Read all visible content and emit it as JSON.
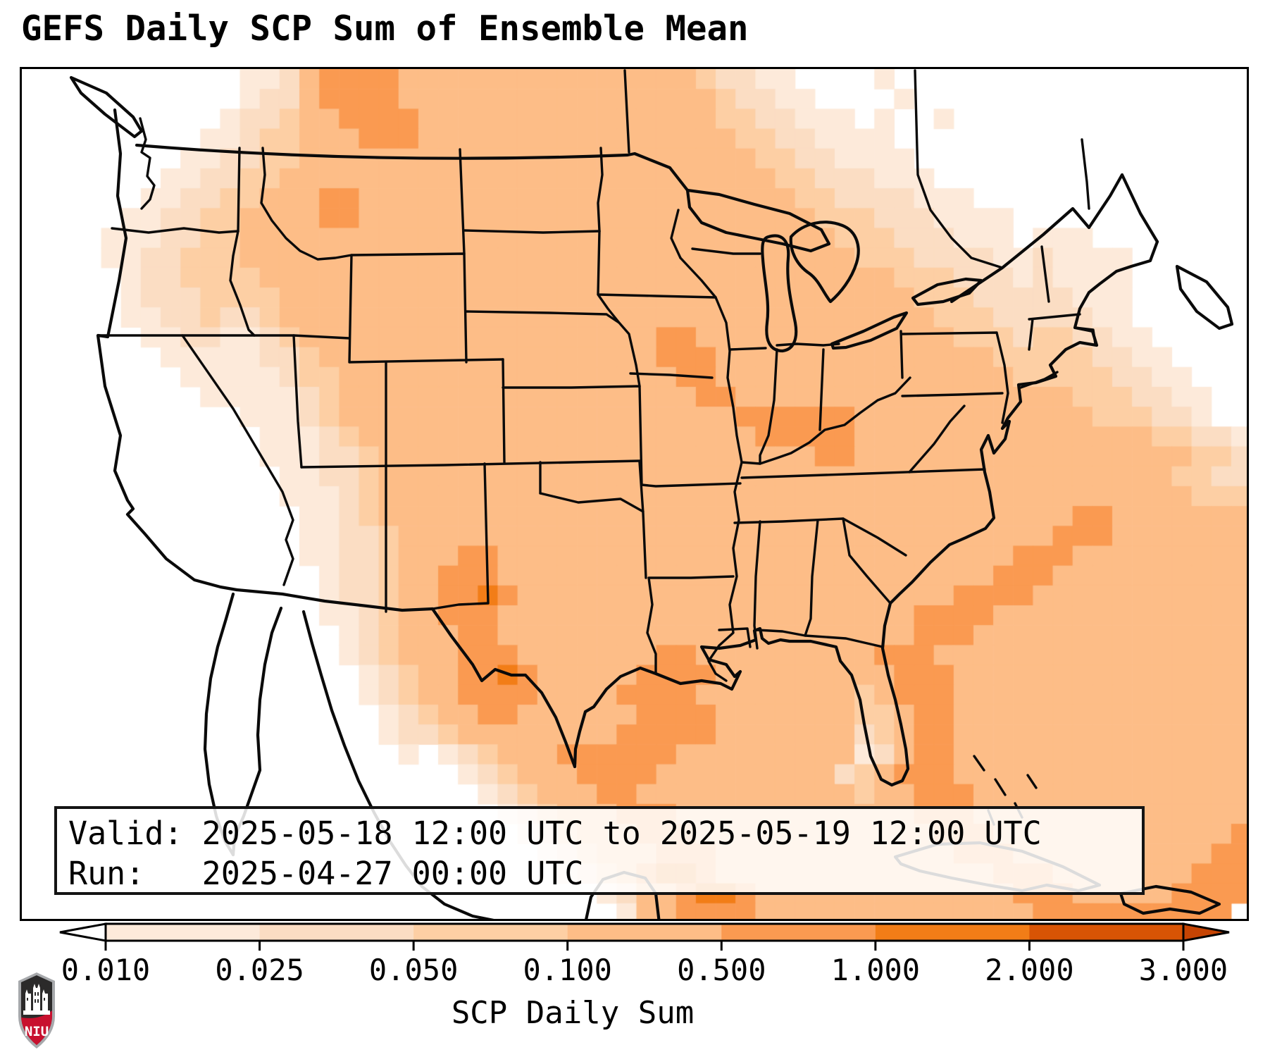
{
  "title": "GEFS Daily SCP Sum of Ensemble Mean",
  "info_box": {
    "valid_line": "Valid: 2025-05-18 12:00 UTC to 2025-05-19 12:00 UTC",
    "run_line": "Run:   2025-04-27 00:00 UTC"
  },
  "logo": {
    "name": "niu-shield-logo",
    "text": "NIU",
    "red": "#c8102e",
    "dark": "#2b2a2a",
    "silver": "#a7a9ac"
  },
  "chart_data": {
    "type": "heatmap",
    "title": "GEFS Daily SCP Sum of Ensemble Mean",
    "units_label": "SCP Daily Sum",
    "valid": "2025-05-18 12:00 UTC to 2025-05-19 12:00 UTC",
    "run": "2025-04-27 00:00 UTC",
    "colorbar": {
      "orientation": "horizontal",
      "extend": "both",
      "tick_labels": [
        "0.010",
        "0.025",
        "0.050",
        "0.100",
        "0.500",
        "1.000",
        "2.000",
        "3.000"
      ],
      "levels": [
        0.01,
        0.025,
        0.05,
        0.1,
        0.5,
        1.0,
        2.0,
        3.0
      ],
      "under_color": "#ffffff",
      "segment_colors": [
        "#fdeada",
        "#fbddc3",
        "#fdcfa4",
        "#fdbd87",
        "#fa9a51",
        "#f27d17",
        "#d85405"
      ],
      "over_color": "#c64403"
    },
    "grid_legend": {
      "0": "< 0.010",
      "1": "0.010-0.025",
      "2": "0.025-0.050",
      "3": "0.050-0.100",
      "4": "0.100-0.500",
      "5": "0.500-1.000",
      "6": "1.000-2.000"
    },
    "palette": [
      "#ffffff",
      "#fdeada",
      "#fbddc3",
      "#fdcfa4",
      "#fdbd87",
      "#fa9a51",
      "#f27d17"
    ],
    "grid_cols": 62,
    "grid_rows": 43,
    "grid": [
      "00000000000112455554444444444444443221100001000000000000000000",
      "00000000000122455554444444444444444322110000100000000000000000",
      "00000000001223445555444444444444444332211101001000000000000000",
      "00000000011233444555444444444444444433221111000000000000000000",
      "00000000112233444444444444444444444443322111100000000000000000",
      "00000001122334444444444444444444444444332221110000000000000000",
      "00000011223344455444444444444444444444433222211100000000000000",
      "00000112233444455444444444444444444444443332221111000000000000",
      "00001112233444444444444444444444444444444333222111011100000000",
      "00001122333444444444444444444444444444444433322221121111000000",
      "00000122333344444444444444444444444444444444333222121111000000",
      "00000122233334444444444444444444444444444444433322222111000000",
      "00000112232234444444444444444444444444444444443332222211000000",
      "00000011221123444444444444444444554444444444444333233221100000",
      "00000001111122344444444444444444555444444444444443333322110000",
      "00000000111112334444444444444444455444444444444444333332211000",
      "00000000011111234444444444444444445544444444444444444333221100",
      "00000000000111234444444444444444444455555544444444444433322100",
      "00000000000011123444444444444444444445555544444444444444433221",
      "00000000000011122344444444444444444444445544444444444444444332",
      "00000000000001122344444444444444444444444444444444444444443322",
      "00000000000001112344444444444444444444444444444444444444444333",
      "00000000000000112344444444444444444444444444444444444554444444",
      "00000000000000112234444444444444444444444444444444445554444444",
      "00000000000000112234445544444444444444444444444444555444444444",
      "00000000000000012234455544444444444444444444444445554444444444",
      "00000000000000012234455654444444444444444444444555544444444444",
      "00000000000000011234455544444444444444444444455554444444444444",
      "00000000000000001234445544444444444444444444455544444444444444",
      "00000000000000001234445554444444554444444445554444444444444444",
      "00000000000000000123445565444445555444444444555444444444444444",
      "00000000000000000123445555444455554444444434555444444444444444",
      "00000000000000000012344554444445555444444433455444444444444444",
      "00000000000000000012234444444455555444444423455444444444444444",
      "00000000000000000001012344455555544444444412455444444444444444",
      "00000000000000000000001234445555444444444234555444444444444444",
      "00000000000000000000000123444554444444444434455544444444444444",
      "00000000000000000000000012344455544444444444455544444444444444",
      "00000000000000000000000001234445554444444444445554444444444445",
      "00000000000000000000000000123444555444444444444555444444444455",
      "00000000000000000000000000012345665444444444444445554444444555",
      "00000000000000000000000000000124456654444444444444555444445555",
      "00000000000000000000000000000014455554444444444444455555555550"
    ]
  }
}
